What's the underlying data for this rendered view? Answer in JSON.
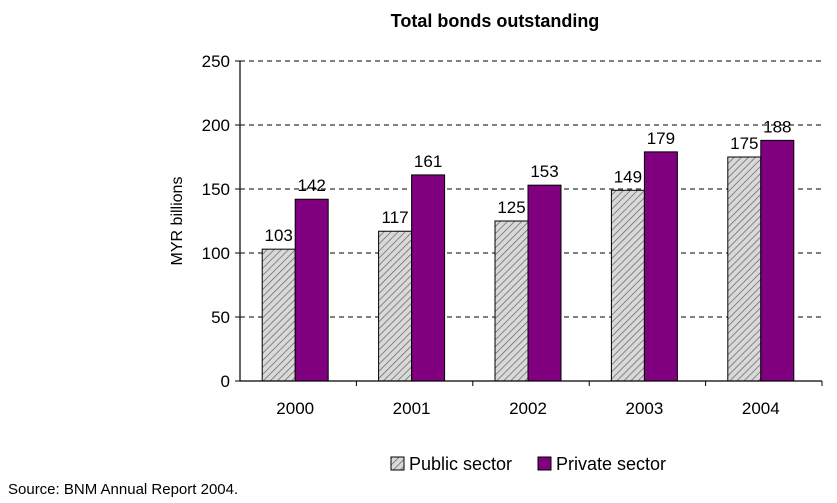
{
  "chart_data": {
    "type": "bar",
    "title": "Total bonds outstanding",
    "xlabel": "",
    "ylabel": "MYR billions",
    "ylim": [
      0,
      250
    ],
    "yticks": [
      "0",
      "50",
      "100",
      "150",
      "200",
      "250"
    ],
    "categories": [
      "2000",
      "2001",
      "2002",
      "2003",
      "2004"
    ],
    "series": [
      {
        "name": "Public sector",
        "values": [
          103,
          117,
          125,
          149,
          175
        ],
        "color": "#c8c8c8",
        "pattern": "diagonal-hatch"
      },
      {
        "name": "Private sector",
        "values": [
          142,
          161,
          153,
          179,
          188
        ],
        "color": "#800080"
      }
    ],
    "data_labels": [
      [
        "103",
        "117",
        "125",
        "149",
        "175"
      ],
      [
        "142",
        "161",
        "153",
        "179",
        "188"
      ]
    ],
    "grid": "horizontal-dashed",
    "legend_position": "bottom"
  },
  "source": "Source: BNM Annual Report 2004."
}
